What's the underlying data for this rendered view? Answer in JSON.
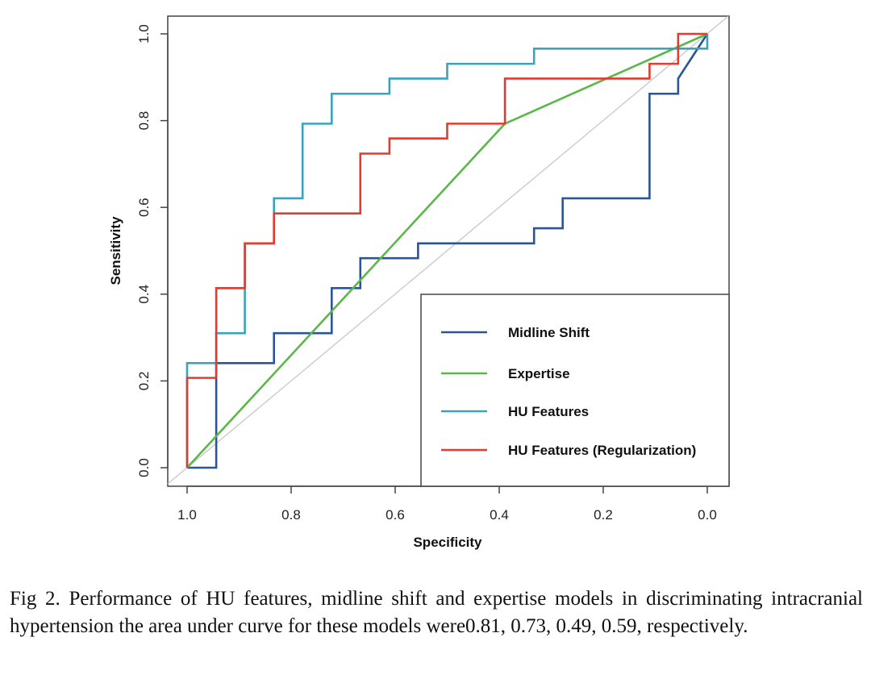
{
  "chart_data": {
    "type": "line",
    "xlabel": "Specificity",
    "ylabel": "Sensitivity",
    "xlim": [
      1.0,
      0.0
    ],
    "ylim": [
      0.0,
      1.0
    ],
    "x_reversed": true,
    "xticks": [
      "1.0",
      "0.8",
      "0.6",
      "0.4",
      "0.2",
      "0.0"
    ],
    "yticks": [
      "0.0",
      "0.2",
      "0.4",
      "0.6",
      "0.8",
      "1.0"
    ],
    "grid": false,
    "legend_position": "bottom-right",
    "reference_line": {
      "from": [
        1.0,
        0.0
      ],
      "to": [
        0.0,
        1.0
      ],
      "color": "#c8c8c8"
    },
    "series": [
      {
        "name": "Midline Shift",
        "color": "#2b5596",
        "points": [
          [
            1.0,
            0.0
          ],
          [
            0.944,
            0.0
          ],
          [
            0.944,
            0.241
          ],
          [
            0.833,
            0.241
          ],
          [
            0.833,
            0.31
          ],
          [
            0.722,
            0.31
          ],
          [
            0.722,
            0.414
          ],
          [
            0.667,
            0.414
          ],
          [
            0.667,
            0.483
          ],
          [
            0.556,
            0.483
          ],
          [
            0.556,
            0.517
          ],
          [
            0.333,
            0.517
          ],
          [
            0.333,
            0.552
          ],
          [
            0.278,
            0.552
          ],
          [
            0.278,
            0.621
          ],
          [
            0.111,
            0.621
          ],
          [
            0.111,
            0.862
          ],
          [
            0.056,
            0.862
          ],
          [
            0.056,
            0.897
          ],
          [
            0.0,
            1.0
          ]
        ]
      },
      {
        "name": "Expertise",
        "color": "#5ab84a",
        "points": [
          [
            1.0,
            0.0
          ],
          [
            0.389,
            0.793
          ],
          [
            0.0,
            1.0
          ]
        ]
      },
      {
        "name": "HU Features",
        "color": "#3aa3bc",
        "points": [
          [
            1.0,
            0.0
          ],
          [
            1.0,
            0.241
          ],
          [
            0.944,
            0.241
          ],
          [
            0.944,
            0.31
          ],
          [
            0.889,
            0.31
          ],
          [
            0.889,
            0.414
          ],
          [
            0.944,
            0.414
          ],
          [
            0.944,
            0.414
          ],
          [
            0.889,
            0.414
          ],
          [
            0.889,
            0.517
          ],
          [
            0.833,
            0.517
          ],
          [
            0.833,
            0.621
          ],
          [
            0.778,
            0.621
          ],
          [
            0.778,
            0.793
          ],
          [
            0.722,
            0.793
          ],
          [
            0.722,
            0.862
          ],
          [
            0.611,
            0.862
          ],
          [
            0.611,
            0.897
          ],
          [
            0.5,
            0.897
          ],
          [
            0.5,
            0.931
          ],
          [
            0.333,
            0.931
          ],
          [
            0.333,
            0.966
          ],
          [
            0.0,
            0.966
          ],
          [
            0.0,
            1.0
          ]
        ]
      },
      {
        "name": "HU Features (Regularization)",
        "color": "#e23b30",
        "points": [
          [
            1.0,
            0.0
          ],
          [
            1.0,
            0.207
          ],
          [
            0.944,
            0.207
          ],
          [
            0.944,
            0.414
          ],
          [
            0.889,
            0.414
          ],
          [
            0.889,
            0.517
          ],
          [
            0.833,
            0.517
          ],
          [
            0.833,
            0.586
          ],
          [
            0.667,
            0.586
          ],
          [
            0.667,
            0.724
          ],
          [
            0.611,
            0.724
          ],
          [
            0.611,
            0.759
          ],
          [
            0.5,
            0.759
          ],
          [
            0.5,
            0.793
          ],
          [
            0.389,
            0.793
          ],
          [
            0.389,
            0.897
          ],
          [
            0.111,
            0.897
          ],
          [
            0.111,
            0.931
          ],
          [
            0.056,
            0.931
          ],
          [
            0.056,
            1.0
          ],
          [
            0.0,
            1.0
          ]
        ]
      }
    ]
  },
  "caption": "Fig 2. Performance of HU features, midline shift and expertise models in discriminating intracranial hypertension the area under curve for these models were0.81, 0.73, 0.49, 0.59, respectively."
}
